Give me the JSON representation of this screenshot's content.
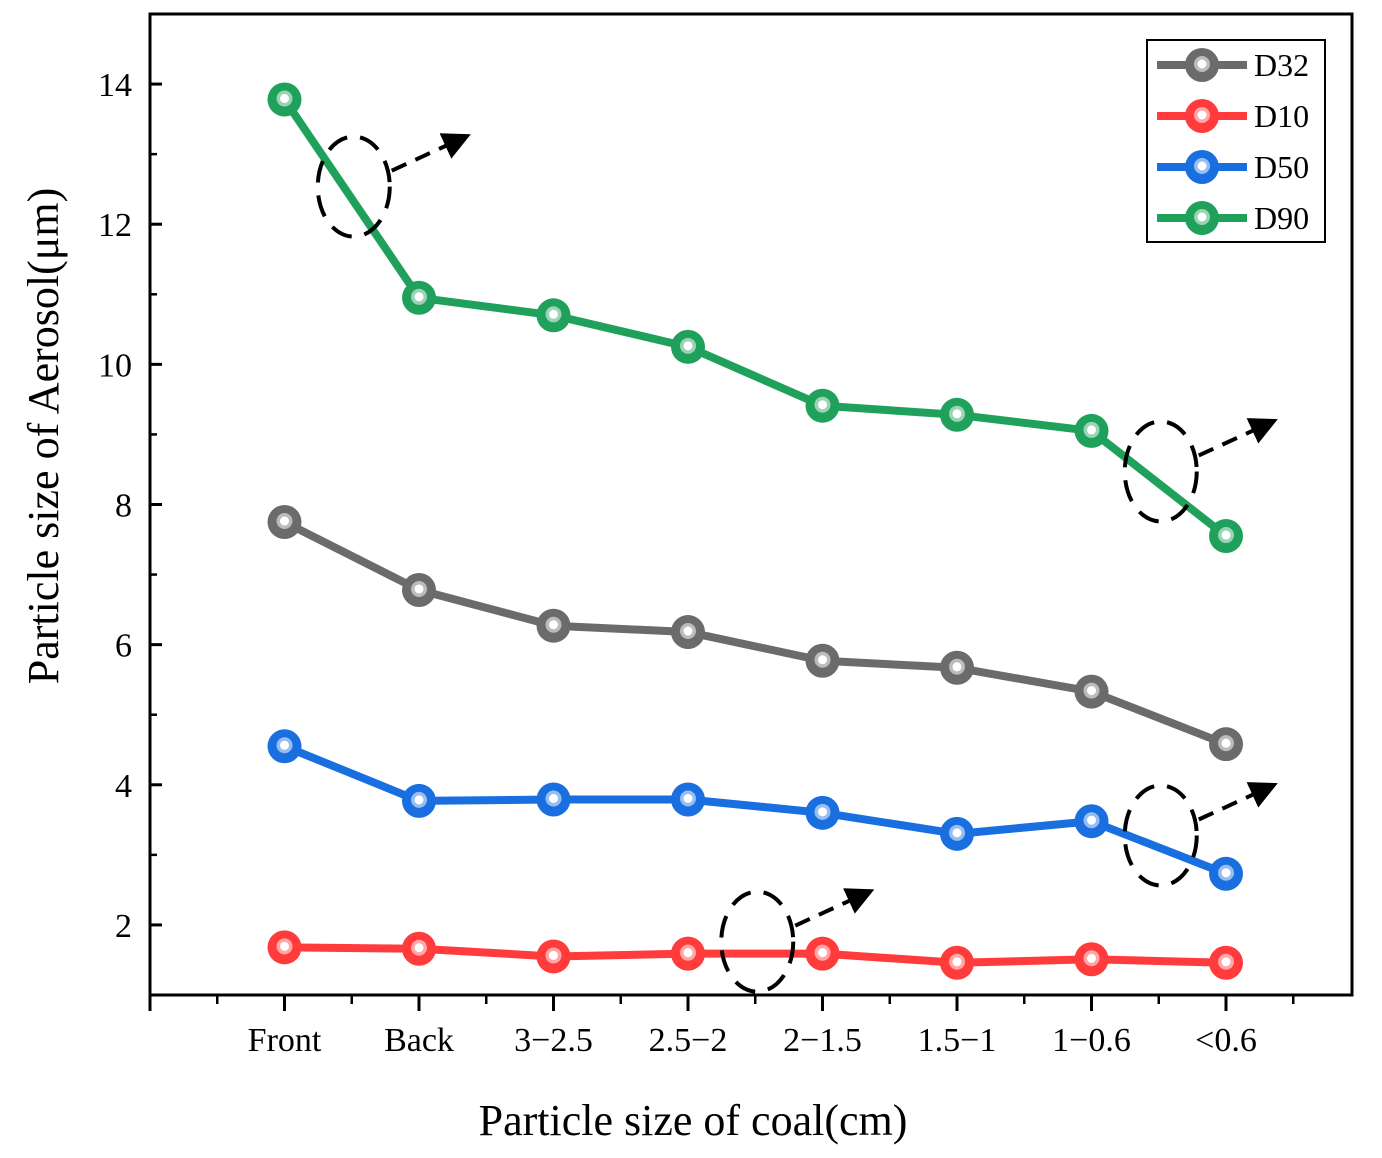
{
  "chart_data": {
    "type": "line",
    "title": "",
    "xlabel": "Particle size of  coal(cm)",
    "ylabel": "Particle size of  Aerosol(μm)",
    "categories": [
      "Front",
      "Back",
      "3−2.5",
      "2.5−2",
      "2−1.5",
      "1.5−1",
      "1−0.6",
      "<0.6"
    ],
    "ylim": [
      1.0,
      15.0
    ],
    "yticks": [
      2,
      4,
      6,
      8,
      10,
      12,
      14
    ],
    "legend_position": "top-right",
    "series": [
      {
        "name": "D32",
        "color": "#6b6b6b",
        "values": [
          7.75,
          6.78,
          6.27,
          6.18,
          5.77,
          5.67,
          5.33,
          4.58
        ]
      },
      {
        "name": "D10",
        "color": "#ff3b3b",
        "values": [
          1.68,
          1.66,
          1.55,
          1.59,
          1.59,
          1.46,
          1.51,
          1.46
        ]
      },
      {
        "name": "D50",
        "color": "#1a6fe0",
        "values": [
          4.55,
          3.77,
          3.79,
          3.79,
          3.6,
          3.3,
          3.48,
          2.73
        ]
      },
      {
        "name": "D90",
        "color": "#1fa15c",
        "values": [
          13.78,
          10.95,
          10.7,
          10.25,
          9.41,
          9.28,
          9.05,
          7.55
        ]
      }
    ],
    "annotations": [
      {
        "type": "dashed-circle-arrow",
        "near_series": "D90",
        "between": [
          "Front",
          "Back"
        ]
      },
      {
        "type": "dashed-circle-arrow",
        "near_series": "D90",
        "between": [
          "1−0.6",
          "<0.6"
        ]
      },
      {
        "type": "dashed-circle-arrow",
        "near_series": "D50",
        "between": [
          "1−0.6",
          "<0.6"
        ]
      },
      {
        "type": "dashed-circle-arrow",
        "near_series": "D10",
        "between": [
          "2.5−2",
          "2−1.5"
        ]
      }
    ]
  }
}
